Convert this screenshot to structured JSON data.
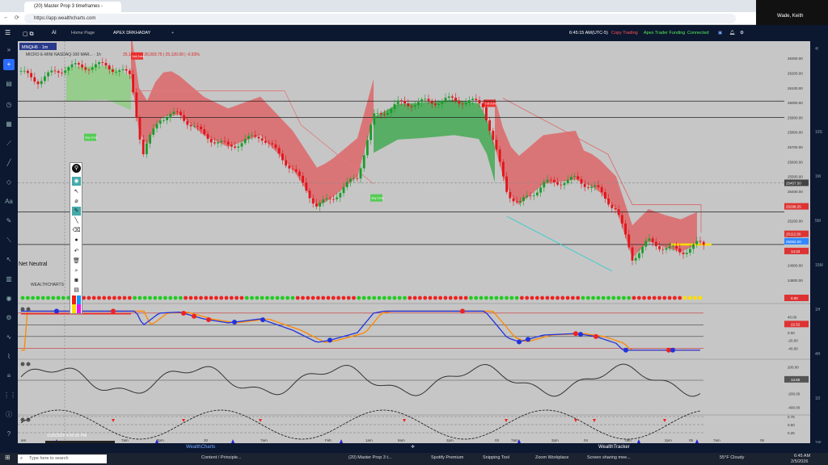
{
  "browser": {
    "tab_title": "(20) Master Prop 3 timeframes - ",
    "url": "https://app.wealthcharts.com",
    "profile_name": "Wade, Keith"
  },
  "app": {
    "home_tab": "Home Page",
    "active_tab": "APEX DRKHADAY",
    "time": "6:45:15 AM",
    "timezone": "(UTC-5)",
    "status_copy": "Copy Trading",
    "status_apex": "Apex Trader Funding",
    "status_connected": "Connected",
    "bottom_left": "WealthCharts",
    "bottom_right": "WealthTracker"
  },
  "chart": {
    "symbol_badge": "MNQH6 · 1m",
    "instrument": "MICRO E-MINI NASDAQ-100 MAR... · 1h",
    "ohlc_text": "25,148.50 | 26,093.75 | 25,120.00 | -0.93%",
    "buy_zone_label": "Buy Zone",
    "sell_zone_label": "Sell Zone",
    "net_neutral_label": "Net Neutral",
    "wealthcharts_watermark": "WEALTHCHARTS",
    "crosshair_date": "1/26/2026 4:00:00 PM",
    "price_ticks": [
      "26300.00",
      "26200.00",
      "26100.00",
      "26000.00",
      "25900.00",
      "25800.00",
      "25700.00",
      "25600.00",
      "25500.00",
      "25400.00",
      "25300.00",
      "25200.00",
      "25100.00",
      "25000.00",
      "24900.00",
      "24800.00"
    ],
    "price_markers": {
      "p1": "25457.50",
      "p2": "25298.25",
      "p3": "25112.50",
      "p4": "25062.00",
      "countdown": "14:43"
    },
    "osc_ticks": [
      "40.00",
      "20.00",
      "0.00",
      "-20.00",
      "-40.00"
    ],
    "osc_value": "22.52",
    "osc2_ticks": [
      "200.00",
      "0.00",
      "-200.00",
      "-400.00"
    ],
    "osc2_value": "13.60",
    "osc3_ticks": [
      "0.75",
      "0.50",
      "0.25"
    ],
    "osc3_value": "0.00",
    "dots_value": "0.00",
    "time_ticks": [
      "am",
      "7am",
      "2pm",
      "30",
      "7am",
      "Feb",
      "1am",
      "8am",
      "2pm",
      "03",
      "7am",
      "2pm",
      "04",
      "7am",
      "2pm",
      "05",
      "7am",
      "06"
    ],
    "right_tf": [
      "10S",
      "1M",
      "5M",
      "15M",
      "1H",
      "4H",
      "1D",
      "1W"
    ],
    "colors": {
      "up": "#1a9c2a",
      "down": "#e3141b",
      "cloud_red": "#e8585a",
      "cloud_green": "#2ea83a",
      "bg": "#c6c6c6"
    }
  },
  "taskbar": {
    "search_placeholder": "Type here to search",
    "items": [
      "Content / Principle...",
      "(20) Master Prop 3 t...",
      "Spotify Premium",
      "Snipping Tool",
      "Zoom Workplace",
      "Screen sharing mee..."
    ],
    "weather": "55°F Cloudy",
    "clock_time": "6:45 AM",
    "clock_date": "2/5/2026"
  }
}
